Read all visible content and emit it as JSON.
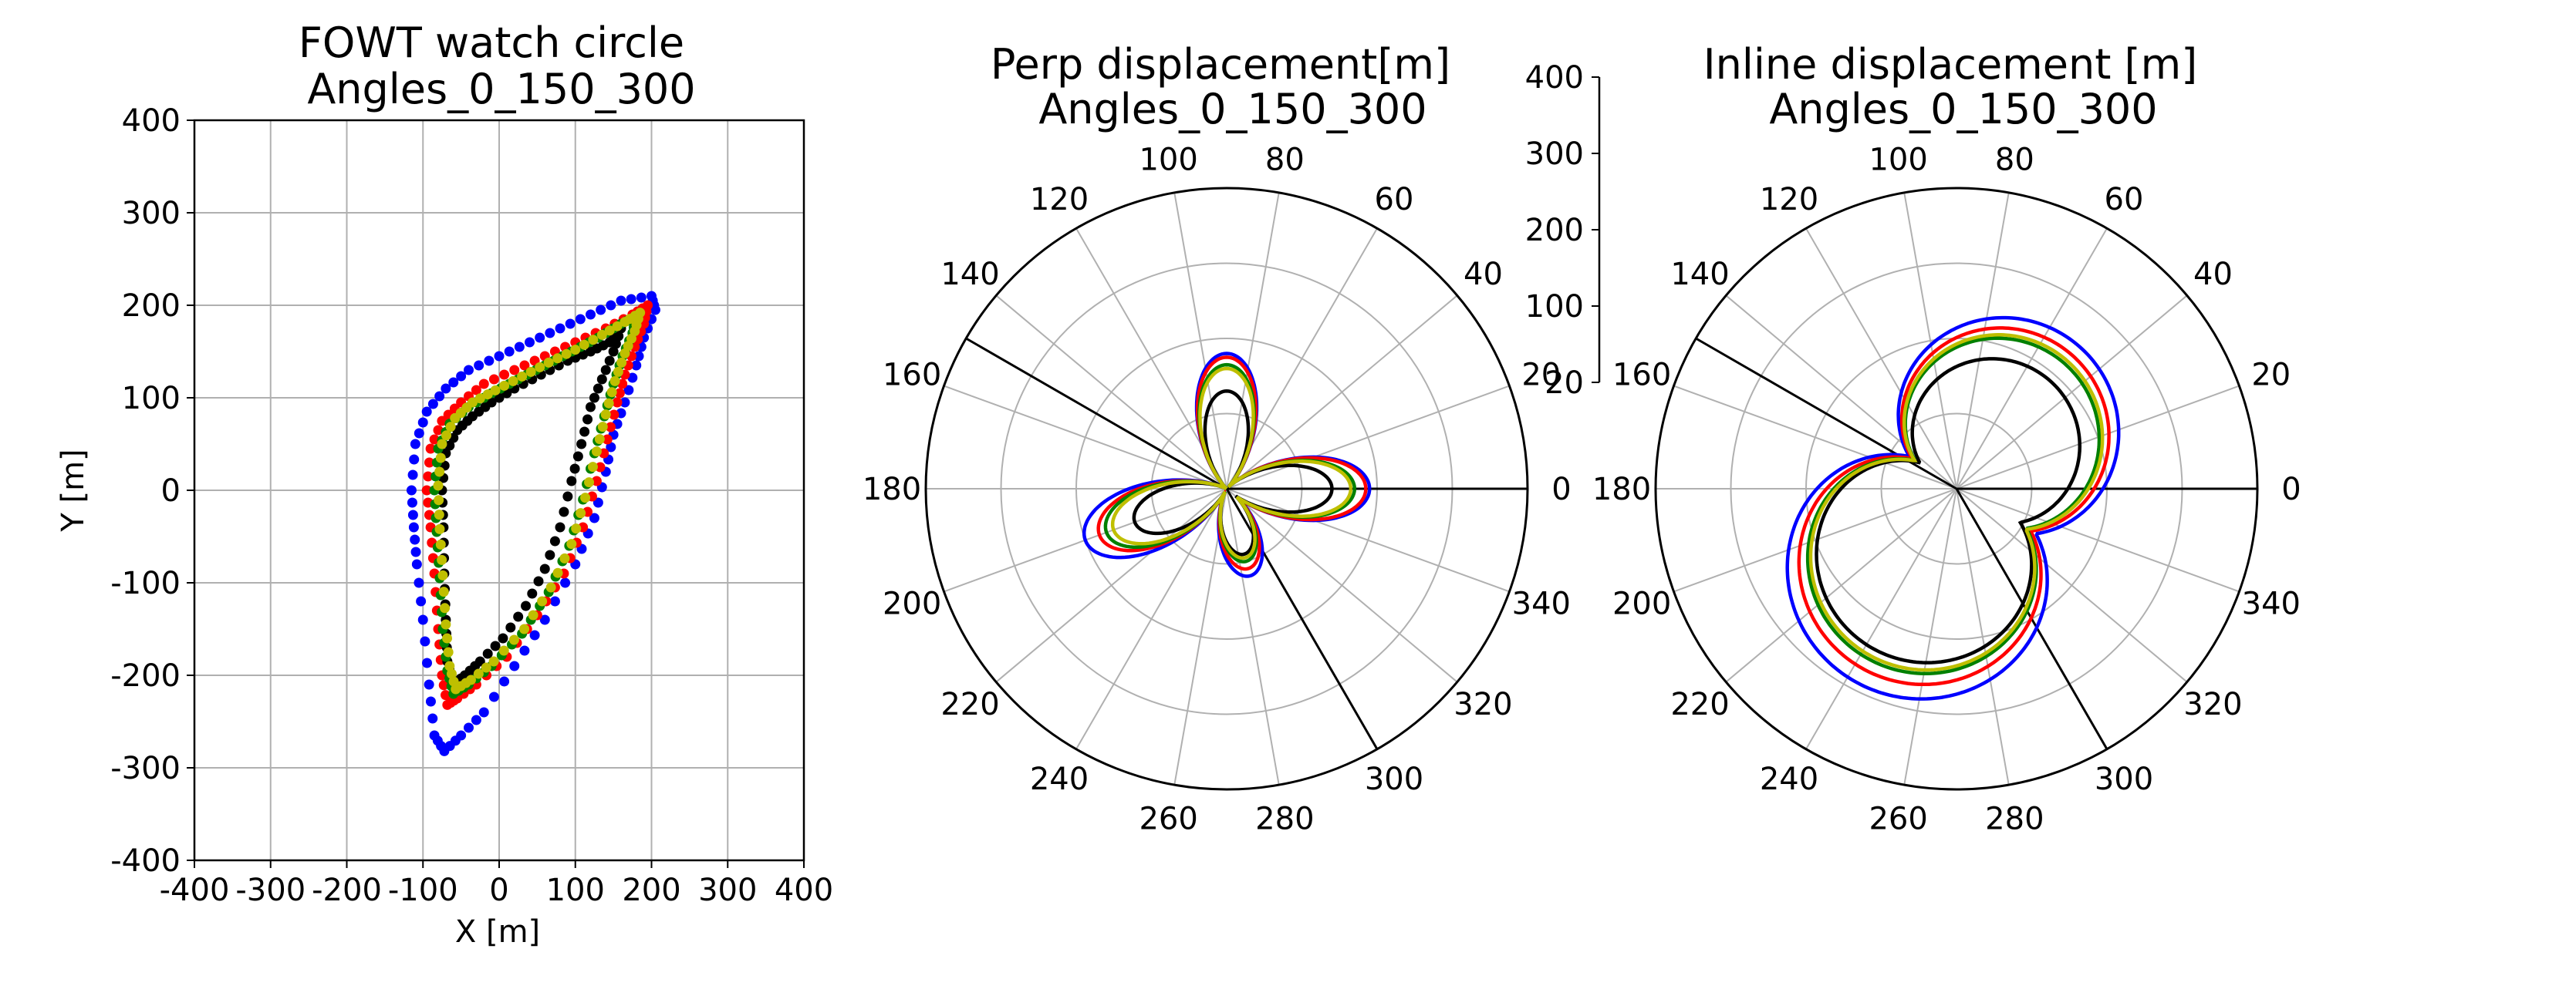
{
  "colors": {
    "series": [
      "#0000ff",
      "#ff0000",
      "#000000",
      "#008000",
      "#bfbf00"
    ],
    "grid": "#b0b0b0"
  },
  "panels": {
    "left": {
      "title_line1": "FOWT watch circle",
      "title_line2": "Angles_0_150_300",
      "xlabel": "X [m]",
      "ylabel": "Y [m]"
    },
    "middle": {
      "title_line1": "Perp displacement[m]",
      "title_line2": "Angles_0_150_300"
    },
    "right": {
      "title_line1": "Inline displacement [m]",
      "title_line2": "Angles_0_150_300"
    }
  },
  "chart_data": [
    {
      "type": "scatter",
      "title": "FOWT watch circle\nAngles_0_150_300",
      "xlabel": "X [m]",
      "ylabel": "Y [m]",
      "xlim": [
        -400,
        400
      ],
      "ylim": [
        -400,
        400
      ],
      "xticks": [
        "-400",
        "-300",
        "-200",
        "-100",
        "0",
        "100",
        "200",
        "300",
        "400"
      ],
      "yticks": [
        "-400",
        "-300",
        "-200",
        "-100",
        "0",
        "100",
        "200",
        "300",
        "400"
      ],
      "grid": true,
      "series": [
        {
          "color": "#0000ff",
          "points": [
            [
              -115,
              0
            ],
            [
              -110,
              50
            ],
            [
              -95,
              85
            ],
            [
              -70,
              110
            ],
            [
              -40,
              130
            ],
            [
              0,
              145
            ],
            [
              40,
              160
            ],
            [
              80,
              175
            ],
            [
              120,
              190
            ],
            [
              160,
              205
            ],
            [
              200,
              210
            ],
            [
              205,
              195
            ],
            [
              190,
              165
            ],
            [
              180,
              135
            ],
            [
              165,
              95
            ],
            [
              150,
              60
            ],
            [
              140,
              20
            ],
            [
              125,
              -30
            ],
            [
              100,
              -80
            ],
            [
              60,
              -140
            ],
            [
              20,
              -190
            ],
            [
              -20,
              -240
            ],
            [
              -50,
              -265
            ],
            [
              -72,
              -282
            ],
            [
              -85,
              -265
            ],
            [
              -92,
              -210
            ],
            [
              -100,
              -140
            ],
            [
              -108,
              -80
            ],
            [
              -112,
              -40
            ]
          ]
        },
        {
          "color": "#ff0000",
          "points": [
            [
              -95,
              0
            ],
            [
              -90,
              45
            ],
            [
              -75,
              75
            ],
            [
              -50,
              95
            ],
            [
              -20,
              115
            ],
            [
              20,
              130
            ],
            [
              60,
              145
            ],
            [
              100,
              160
            ],
            [
              140,
              175
            ],
            [
              175,
              190
            ],
            [
              195,
              200
            ],
            [
              190,
              180
            ],
            [
              178,
              155
            ],
            [
              165,
              125
            ],
            [
              155,
              95
            ],
            [
              142,
              55
            ],
            [
              128,
              10
            ],
            [
              110,
              -40
            ],
            [
              85,
              -90
            ],
            [
              50,
              -135
            ],
            [
              10,
              -180
            ],
            [
              -30,
              -210
            ],
            [
              -55,
              -225
            ],
            [
              -68,
              -232
            ],
            [
              -75,
              -200
            ],
            [
              -80,
              -150
            ],
            [
              -85,
              -90
            ],
            [
              -90,
              -40
            ]
          ]
        },
        {
          "color": "#000000",
          "points": [
            [
              -75,
              0
            ],
            [
              -70,
              40
            ],
            [
              -55,
              65
            ],
            [
              -35,
              80
            ],
            [
              -10,
              95
            ],
            [
              20,
              110
            ],
            [
              55,
              125
            ],
            [
              90,
              140
            ],
            [
              120,
              150
            ],
            [
              145,
              160
            ],
            [
              160,
              175
            ],
            [
              150,
              150
            ],
            [
              135,
              120
            ],
            [
              120,
              90
            ],
            [
              108,
              50
            ],
            [
              95,
              10
            ],
            [
              80,
              -40
            ],
            [
              60,
              -85
            ],
            [
              35,
              -125
            ],
            [
              5,
              -160
            ],
            [
              -25,
              -185
            ],
            [
              -45,
              -200
            ],
            [
              -60,
              -210
            ],
            [
              -68,
              -185
            ],
            [
              -70,
              -140
            ],
            [
              -72,
              -90
            ],
            [
              -73,
              -40
            ]
          ]
        },
        {
          "color": "#008000",
          "points": [
            [
              -85,
              0
            ],
            [
              -80,
              45
            ],
            [
              -65,
              72
            ],
            [
              -40,
              90
            ],
            [
              -10,
              105
            ],
            [
              25,
              120
            ],
            [
              60,
              135
            ],
            [
              95,
              150
            ],
            [
              130,
              165
            ],
            [
              160,
              180
            ],
            [
              180,
              188
            ],
            [
              175,
              170
            ],
            [
              162,
              145
            ],
            [
              150,
              115
            ],
            [
              138,
              80
            ],
            [
              125,
              40
            ],
            [
              110,
              -10
            ],
            [
              92,
              -60
            ],
            [
              65,
              -110
            ],
            [
              30,
              -155
            ],
            [
              -10,
              -190
            ],
            [
              -40,
              -210
            ],
            [
              -60,
              -220
            ],
            [
              -68,
              -195
            ],
            [
              -74,
              -150
            ],
            [
              -78,
              -95
            ],
            [
              -82,
              -45
            ]
          ]
        },
        {
          "color": "#bfbf00",
          "points": [
            [
              -80,
              5
            ],
            [
              -75,
              50
            ],
            [
              -58,
              78
            ],
            [
              -35,
              95
            ],
            [
              -5,
              108
            ],
            [
              30,
              123
            ],
            [
              65,
              138
            ],
            [
              100,
              152
            ],
            [
              135,
              168
            ],
            [
              165,
              182
            ],
            [
              185,
              192
            ],
            [
              178,
              172
            ],
            [
              165,
              148
            ],
            [
              152,
              118
            ],
            [
              140,
              82
            ],
            [
              128,
              42
            ],
            [
              113,
              -8
            ],
            [
              95,
              -58
            ],
            [
              68,
              -105
            ],
            [
              33,
              -150
            ],
            [
              -7,
              -185
            ],
            [
              -37,
              -205
            ],
            [
              -57,
              -215
            ],
            [
              -65,
              -190
            ],
            [
              -70,
              -145
            ],
            [
              -74,
              -92
            ],
            [
              -78,
              -42
            ]
          ]
        }
      ]
    },
    {
      "type": "polar",
      "title": "Perp displacement[m]\nAngles_0_150_300",
      "theta_ticks": [
        "0",
        "20",
        "40",
        "60",
        "80",
        "100",
        "120",
        "140",
        "160",
        "180",
        "200",
        "220",
        "240",
        "260",
        "280",
        "300",
        "320",
        "340"
      ],
      "rlim": [
        0,
        400
      ],
      "r_ticks": [
        "20",
        "100",
        "200",
        "300",
        "400"
      ],
      "direction_lines_deg": [
        150,
        300
      ],
      "grid": true,
      "series": [
        {
          "color": "#0000ff",
          "lobes": [
            [
              0,
              190
            ],
            [
              90,
              180
            ],
            [
              200,
              200
            ],
            [
              285,
              120
            ]
          ]
        },
        {
          "color": "#ff0000",
          "lobes": [
            [
              0,
              185
            ],
            [
              90,
              175
            ],
            [
              200,
              180
            ],
            [
              285,
              110
            ]
          ]
        },
        {
          "color": "#000000",
          "lobes": [
            [
              0,
              140
            ],
            [
              90,
              130
            ],
            [
              200,
              130
            ],
            [
              285,
              90
            ]
          ]
        },
        {
          "color": "#008000",
          "lobes": [
            [
              0,
              170
            ],
            [
              90,
              165
            ],
            [
              200,
              170
            ],
            [
              285,
              100
            ]
          ]
        },
        {
          "color": "#bfbf00",
          "lobes": [
            [
              0,
              165
            ],
            [
              90,
              160
            ],
            [
              200,
              160
            ],
            [
              285,
              95
            ]
          ]
        }
      ]
    },
    {
      "type": "polar",
      "title": "Inline displacement [m]\nAngles_0_150_300",
      "theta_ticks": [
        "0",
        "20",
        "40",
        "60",
        "80",
        "100",
        "120",
        "140",
        "160",
        "180",
        "200",
        "220",
        "240",
        "260",
        "280",
        "300",
        "320",
        "340"
      ],
      "rlim": [
        0,
        400
      ],
      "r_ticks": [
        "20",
        "100",
        "200",
        "300",
        "400"
      ],
      "direction_lines_deg": [
        150,
        300
      ],
      "grid": true,
      "series": [
        {
          "color": "#0000ff",
          "lobes": [
            [
              50,
              250
            ],
            [
              245,
              290
            ]
          ]
        },
        {
          "color": "#ff0000",
          "lobes": [
            [
              50,
              235
            ],
            [
              245,
              270
            ]
          ]
        },
        {
          "color": "#000000",
          "lobes": [
            [
              50,
              190
            ],
            [
              245,
              240
            ]
          ]
        },
        {
          "color": "#008000",
          "lobes": [
            [
              50,
              220
            ],
            [
              245,
              255
            ]
          ]
        },
        {
          "color": "#bfbf00",
          "lobes": [
            [
              50,
              225
            ],
            [
              245,
              250
            ]
          ]
        }
      ]
    }
  ]
}
